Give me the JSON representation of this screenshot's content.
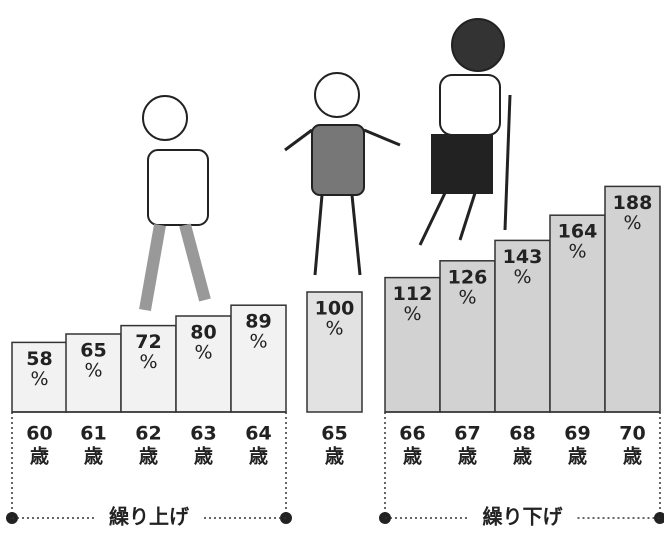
{
  "chart_data": {
    "type": "bar",
    "categories": [
      "60",
      "61",
      "62",
      "63",
      "64",
      "65",
      "66",
      "67",
      "68",
      "69",
      "70"
    ],
    "category_unit": "歳",
    "values": [
      58,
      65,
      72,
      80,
      89,
      100,
      112,
      126,
      143,
      164,
      188
    ],
    "value_unit": "%",
    "colors": [
      "#f2f2f2",
      "#f2f2f2",
      "#f2f2f2",
      "#f2f2f2",
      "#f2f2f2",
      "#e2e2e2",
      "#d2d2d2",
      "#d2d2d2",
      "#d2d2d2",
      "#d2d2d2",
      "#d2d2d2"
    ],
    "annotations": [
      "繰り上げ",
      "繰り下げ"
    ]
  }
}
